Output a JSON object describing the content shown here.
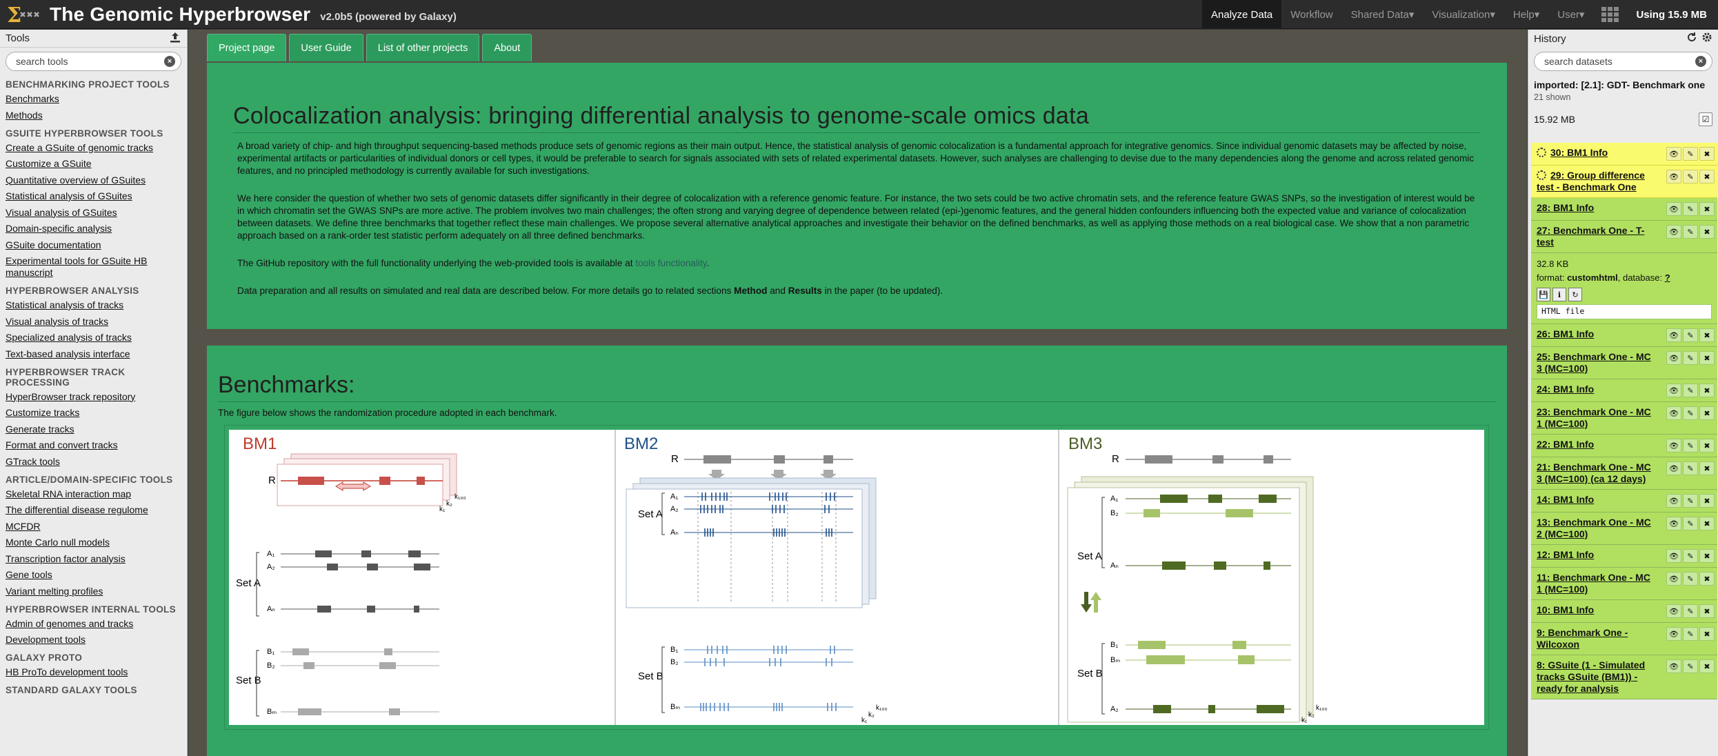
{
  "masthead": {
    "title": "The Genomic Hyperbrowser",
    "version": "v2.0b5 (powered by Galaxy)",
    "nav": [
      {
        "label": "Analyze Data",
        "active": true
      },
      {
        "label": "Workflow"
      },
      {
        "label": "Shared Data▾"
      },
      {
        "label": "Visualization▾"
      },
      {
        "label": "Help▾"
      },
      {
        "label": "User▾"
      }
    ],
    "quota": "Using 15.9 MB"
  },
  "tools": {
    "header": "Tools",
    "search_placeholder": "search tools",
    "sections": [
      {
        "title": "BENCHMARKING PROJECT TOOLS",
        "items": [
          "Benchmarks",
          "Methods"
        ]
      },
      {
        "title": "GSUITE HYPERBROWSER TOOLS",
        "items": [
          "Create a GSuite of genomic tracks",
          "Customize a GSuite",
          "Quantitative overview of GSuites",
          "Statistical analysis of GSuites",
          "Visual analysis of GSuites",
          "Domain-specific analysis",
          "GSuite documentation",
          "Experimental tools for GSuite HB manuscript"
        ]
      },
      {
        "title": "HYPERBROWSER ANALYSIS",
        "items": [
          "Statistical analysis of tracks",
          "Visual analysis of tracks",
          "Specialized analysis of tracks",
          "Text-based analysis interface"
        ]
      },
      {
        "title": "HYPERBROWSER TRACK PROCESSING",
        "items": [
          "HyperBrowser track repository",
          "Customize tracks",
          "Generate tracks",
          "Format and convert tracks",
          "GTrack tools"
        ]
      },
      {
        "title": "ARTICLE/DOMAIN-SPECIFIC TOOLS",
        "items": [
          "Skeletal RNA interaction map",
          "The differential disease regulome",
          "MCFDR",
          "Monte Carlo null models",
          "Transcription factor analysis",
          "Gene tools",
          "Variant melting profiles"
        ]
      },
      {
        "title": "HYPERBROWSER INTERNAL TOOLS",
        "items": [
          "Admin of genomes and tracks",
          "Development tools"
        ]
      },
      {
        "title": "GALAXY PROTO",
        "items": [
          "HB ProTo development tools"
        ]
      },
      {
        "title": "STANDARD GALAXY TOOLS",
        "items": []
      }
    ]
  },
  "center": {
    "tabs": [
      "Project page",
      "User Guide",
      "List of other projects",
      "About"
    ],
    "title": "Colocalization analysis: bringing differential analysis to genome-scale omics data",
    "p1": "A broad variety of chip- and high throughput sequencing-based methods produce sets of genomic regions as their main output. Hence, the statistical analysis of genomic colocalization is a fundamental approach for integrative genomics. Since individual genomic datasets may be affected by noise, experimental artifacts or particularities of individual donors or cell types, it would be preferable to search for signals associated with sets of related experimental datasets. However, such analyses are challenging to devise due to the many dependencies along the genome and across related genomic features, and no principled methodology is currently available for such investigations.",
    "p2": "We here consider the question of whether two sets of genomic datasets differ significantly in their degree of colocalization with a reference genomic feature. For instance, the two sets could be two active chromatin sets, and the reference feature GWAS SNPs, so the investigation of interest would be in which chromatin set the GWAS SNPs are more active. The problem involves two main challenges; the often strong and varying degree of dependence between related (epi-)genomic features, and the general hidden confounders influencing both the expected value and variance of colocalization between datasets. We define three benchmarks that together reflect these main challenges. We propose several alternative analytical approaches and investigate their behavior on the defined benchmarks, as well as applying those methods on a real biological case. We show that a non parametric approach based on a rank-order test statistic perform adequately on all three defined benchmarks.",
    "p3_pre": "The GitHub repository with the full functionality underlying the web-provided tools is available at ",
    "p3_link": "tools functionality",
    "p3_post": ".",
    "p4_pre": "Data preparation and all results on simulated and real data are described below. For more details go to related sections ",
    "p4_b1": "Method",
    "p4_mid": " and ",
    "p4_b2": "Results",
    "p4_post": " in the paper (to be updated).",
    "bench_title": "Benchmarks:",
    "bench_caption": "The figure below shows the randomization procedure adopted in each benchmark.",
    "figure": {
      "bm1": {
        "title": "BM1",
        "color": "#c0392b",
        "r": "R",
        "setA": "Set A",
        "setB": "Set B",
        "a1": "A₁",
        "a2": "A₂",
        "an": "Aₙ",
        "b1": "B₁",
        "b2": "B₂",
        "bm": "Bₘ",
        "k1": "k₁",
        "k2": "k₂",
        "k100": "k₁₀₀"
      },
      "bm2": {
        "title": "BM2",
        "color": "#1f4f8a",
        "r": "R",
        "setA": "Set A",
        "setB": "Set B",
        "a1": "A₁",
        "a2": "A₂",
        "an": "Aₙ",
        "b1": "B₁",
        "b2": "B₂",
        "bm": "Bₘ",
        "k1": "k₁",
        "k2": "k₂",
        "k100": "k₁₀₀"
      },
      "bm3": {
        "title": "BM3",
        "color": "#4a5e23",
        "r": "R",
        "setA": "Set A",
        "setB": "Set B",
        "a1": "A₁",
        "b2": "B₂",
        "an": "Aₙ",
        "b1": "B₁",
        "bm": "Bₘ",
        "a2": "A₂",
        "k1": "k₁",
        "k2": "k₂",
        "k100": "k₁₀₀"
      }
    }
  },
  "history": {
    "header": "History",
    "search_placeholder": "search datasets",
    "name": "imported: [2.1]: GDT- Benchmark one",
    "shown": "21 shown",
    "size": "15.92 MB",
    "datasets": [
      {
        "title": "30: BM1 Info",
        "state": "queued"
      },
      {
        "title": "29: Group difference test - Benchmark One",
        "state": "queued"
      },
      {
        "title": "28: BM1 Info",
        "state": "ok"
      },
      {
        "title": "27: Benchmark One - T-test",
        "state": "ok",
        "expanded": true,
        "size": "32.8 KB",
        "format_label": "format: ",
        "format": "customhtml",
        "db_label": ", database: ",
        "db": "?",
        "peek": "HTML file"
      },
      {
        "title": "26: BM1 Info",
        "state": "ok"
      },
      {
        "title": "25: Benchmark One - MC 3 (MC=100)",
        "state": "ok"
      },
      {
        "title": "24: BM1 Info",
        "state": "ok"
      },
      {
        "title": "23: Benchmark One - MC 1 (MC=100)",
        "state": "ok"
      },
      {
        "title": "22: BM1 Info",
        "state": "ok"
      },
      {
        "title": "21: Benchmark One - MC 3 (MC=100) (ca 12 days)",
        "state": "ok"
      },
      {
        "title": "14: BM1 Info",
        "state": "ok"
      },
      {
        "title": "13: Benchmark One - MC 2 (MC=100)",
        "state": "ok"
      },
      {
        "title": "12: BM1 Info",
        "state": "ok"
      },
      {
        "title": "11: Benchmark One - MC 1 (MC=100)",
        "state": "ok"
      },
      {
        "title": "10: BM1 Info",
        "state": "ok"
      },
      {
        "title": "9: Benchmark One - Wilcoxon",
        "state": "ok"
      },
      {
        "title": "8: GSuite (1 - Simulated tracks GSuite (BM1)) - ready for analysis",
        "state": "ok"
      }
    ]
  },
  "colors": {
    "accent_green": "#33a664",
    "ok_green": "#b1e060",
    "queued_yellow": "#fafa6e"
  }
}
